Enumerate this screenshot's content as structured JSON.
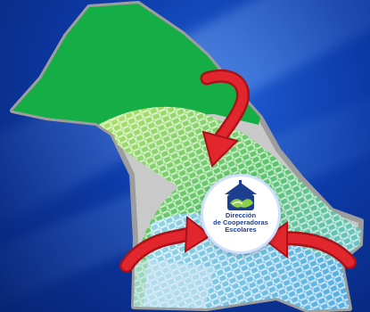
{
  "colors": {
    "background": "#0d3aa8",
    "province_fill": "#17b24a",
    "province_border": "#a7a7a7",
    "arrow": "#d81f26",
    "mesh_green": "#8fd04a",
    "mesh_blue": "#7ec8f2",
    "logo_blue": "#1d3f8f"
  },
  "icons": {
    "logo": "hands-house-logo-icon",
    "arrows": "red-curved-arrow-icon"
  },
  "logo": {
    "line1": "Dirección",
    "line2": "de Cooperadoras",
    "line3": "Escolares"
  }
}
